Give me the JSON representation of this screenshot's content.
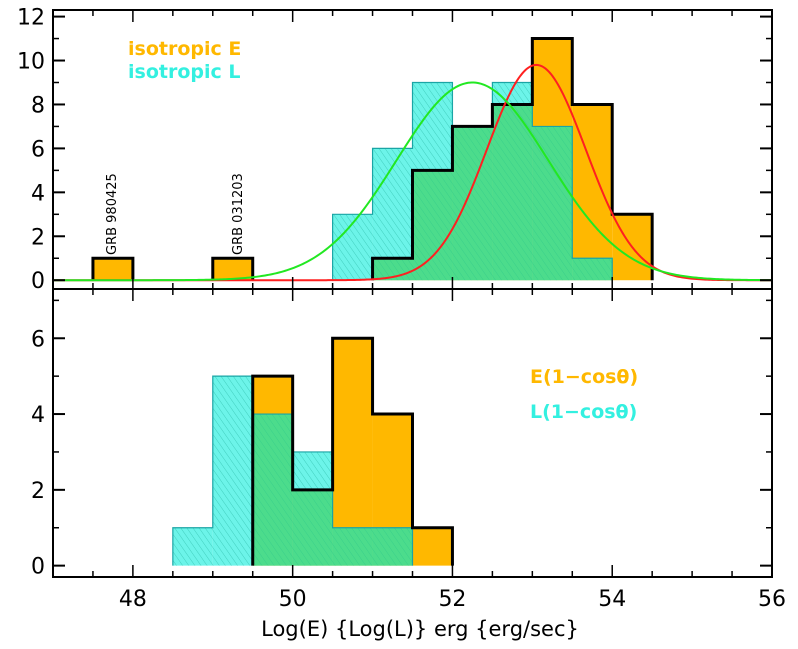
{
  "chart_data": [
    {
      "type": "bar",
      "panel": "top",
      "xlabel": "Log(E) {Log(L)} erg {erg/sec}",
      "ylabel": "",
      "xlim": [
        47,
        56
      ],
      "ylim": [
        -0.4,
        12.3
      ],
      "x_ticks": [
        48,
        50,
        52,
        54,
        56
      ],
      "y_ticks": [
        0,
        2,
        4,
        6,
        8,
        10,
        12
      ],
      "legend": [
        {
          "label": "isotropic E",
          "color": "#FFB800"
        },
        {
          "label": "isotropic L",
          "color": "#33F0E0"
        }
      ],
      "legend_placement": "top-left",
      "annotations": [
        "GRB 980425",
        "GRB 031203"
      ],
      "annotation_x": [
        47.5,
        49.0
      ],
      "series": [
        {
          "name": "isotropic E",
          "color": "#FFB800",
          "bin_edges": [
            47.5,
            48.0,
            49.0,
            49.5,
            51.0,
            51.5,
            52.0,
            52.5,
            53.0,
            53.5,
            54.0,
            54.5
          ],
          "bins": [
            [
              47.5,
              48.0,
              1
            ],
            [
              49.0,
              49.5,
              1
            ],
            [
              51.0,
              51.5,
              1
            ],
            [
              51.5,
              52.0,
              5
            ],
            [
              52.0,
              52.5,
              7
            ],
            [
              52.5,
              53.0,
              8
            ],
            [
              53.0,
              53.5,
              11
            ],
            [
              53.5,
              54.0,
              8
            ],
            [
              54.0,
              54.5,
              3
            ]
          ]
        },
        {
          "name": "isotropic L",
          "color": "#33F0E0",
          "bins": [
            [
              50.5,
              51.0,
              3
            ],
            [
              51.0,
              51.5,
              6
            ],
            [
              51.5,
              52.0,
              9
            ],
            [
              52.0,
              52.5,
              7
            ],
            [
              52.5,
              53.0,
              9
            ],
            [
              53.0,
              53.5,
              7
            ],
            [
              53.5,
              54.0,
              1
            ]
          ]
        }
      ],
      "fit_curves": [
        {
          "color": "#FF2020",
          "mean": 53.05,
          "sigma": 0.62,
          "peak": 9.8
        },
        {
          "color": "#22E822",
          "mean": 52.25,
          "sigma": 0.95,
          "peak": 9.0
        }
      ]
    },
    {
      "type": "bar",
      "panel": "bottom",
      "xlabel": "Log(E) {Log(L)} erg {erg/sec}",
      "ylabel": "",
      "xlim": [
        47,
        56
      ],
      "ylim": [
        -0.3,
        7.3
      ],
      "x_ticks": [
        48,
        50,
        52,
        54,
        56
      ],
      "y_ticks": [
        0,
        2,
        4,
        6
      ],
      "legend": [
        {
          "label": "E(1−cosθ)",
          "color": "#FFB800"
        },
        {
          "label": "L(1−cosθ)",
          "color": "#33F0E0"
        }
      ],
      "legend_placement": "right",
      "series": [
        {
          "name": "E(1−cosθ)",
          "color": "#FFB800",
          "bins": [
            [
              49.5,
              50.0,
              5
            ],
            [
              50.0,
              50.5,
              2
            ],
            [
              50.5,
              51.0,
              6
            ],
            [
              51.0,
              51.5,
              4
            ],
            [
              51.5,
              52.0,
              1
            ]
          ]
        },
        {
          "name": "L(1−cosθ)",
          "color": "#33F0E0",
          "bins": [
            [
              48.5,
              49.0,
              1
            ],
            [
              49.0,
              49.5,
              5
            ],
            [
              49.5,
              50.0,
              4
            ],
            [
              50.0,
              50.5,
              3
            ],
            [
              50.5,
              51.0,
              1
            ],
            [
              51.0,
              51.5,
              1
            ]
          ]
        }
      ]
    }
  ]
}
